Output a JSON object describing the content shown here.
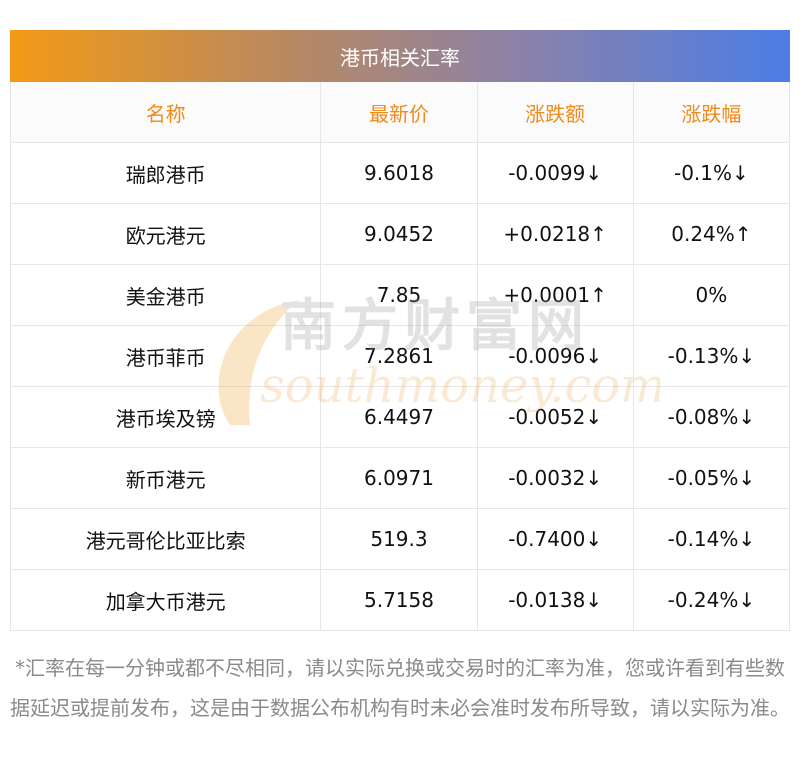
{
  "title": "港币相关汇率",
  "columns": [
    "名称",
    "最新价",
    "涨跌额",
    "涨跌幅"
  ],
  "rows": [
    {
      "name": "瑞郎港币",
      "price": "9.6018",
      "change": "-0.0099↓",
      "pct": "-0.1%↓",
      "price_dir": "down",
      "change_dir": "down",
      "pct_dir": "down"
    },
    {
      "name": "欧元港元",
      "price": "9.0452",
      "change": "+0.0218↑",
      "pct": "0.24%↑",
      "price_dir": "up",
      "change_dir": "up",
      "pct_dir": "up"
    },
    {
      "name": "美金港币",
      "price": "7.85",
      "change": "+0.0001↑",
      "pct": "0%",
      "price_dir": "flat",
      "change_dir": "up",
      "pct_dir": "flat"
    },
    {
      "name": "港币菲币",
      "price": "7.2861",
      "change": "-0.0096↓",
      "pct": "-0.13%↓",
      "price_dir": "down",
      "change_dir": "down",
      "pct_dir": "down"
    },
    {
      "name": "港币埃及镑",
      "price": "6.4497",
      "change": "-0.0052↓",
      "pct": "-0.08%↓",
      "price_dir": "down",
      "change_dir": "down",
      "pct_dir": "down"
    },
    {
      "name": "新币港元",
      "price": "6.0971",
      "change": "-0.0032↓",
      "pct": "-0.05%↓",
      "price_dir": "down",
      "change_dir": "down",
      "pct_dir": "down"
    },
    {
      "name": "港元哥伦比亚比索",
      "price": "519.3",
      "change": "-0.7400↓",
      "pct": "-0.14%↓",
      "price_dir": "down",
      "change_dir": "down",
      "pct_dir": "down"
    },
    {
      "name": "加拿大币港元",
      "price": "5.7158",
      "change": "-0.0138↓",
      "pct": "-0.24%↓",
      "price_dir": "down",
      "change_dir": "down",
      "pct_dir": "down"
    }
  ],
  "watermark": {
    "cn": "南方财富网",
    "en": "southmoney.com"
  },
  "footnote": "*汇率在每一分钟或都不尽相同，请以实际兑换或交易时的汇率为准，您或许看到有些数据延迟或提前发布，这是由于数据公布机构有时未必会准时发布所导致，请以实际为准。",
  "colors": {
    "up": "#e0161b",
    "down": "#1f8a1f",
    "header_text": "#f08a19",
    "gradient_start": "#f39a16",
    "gradient_end": "#4c7de6"
  }
}
